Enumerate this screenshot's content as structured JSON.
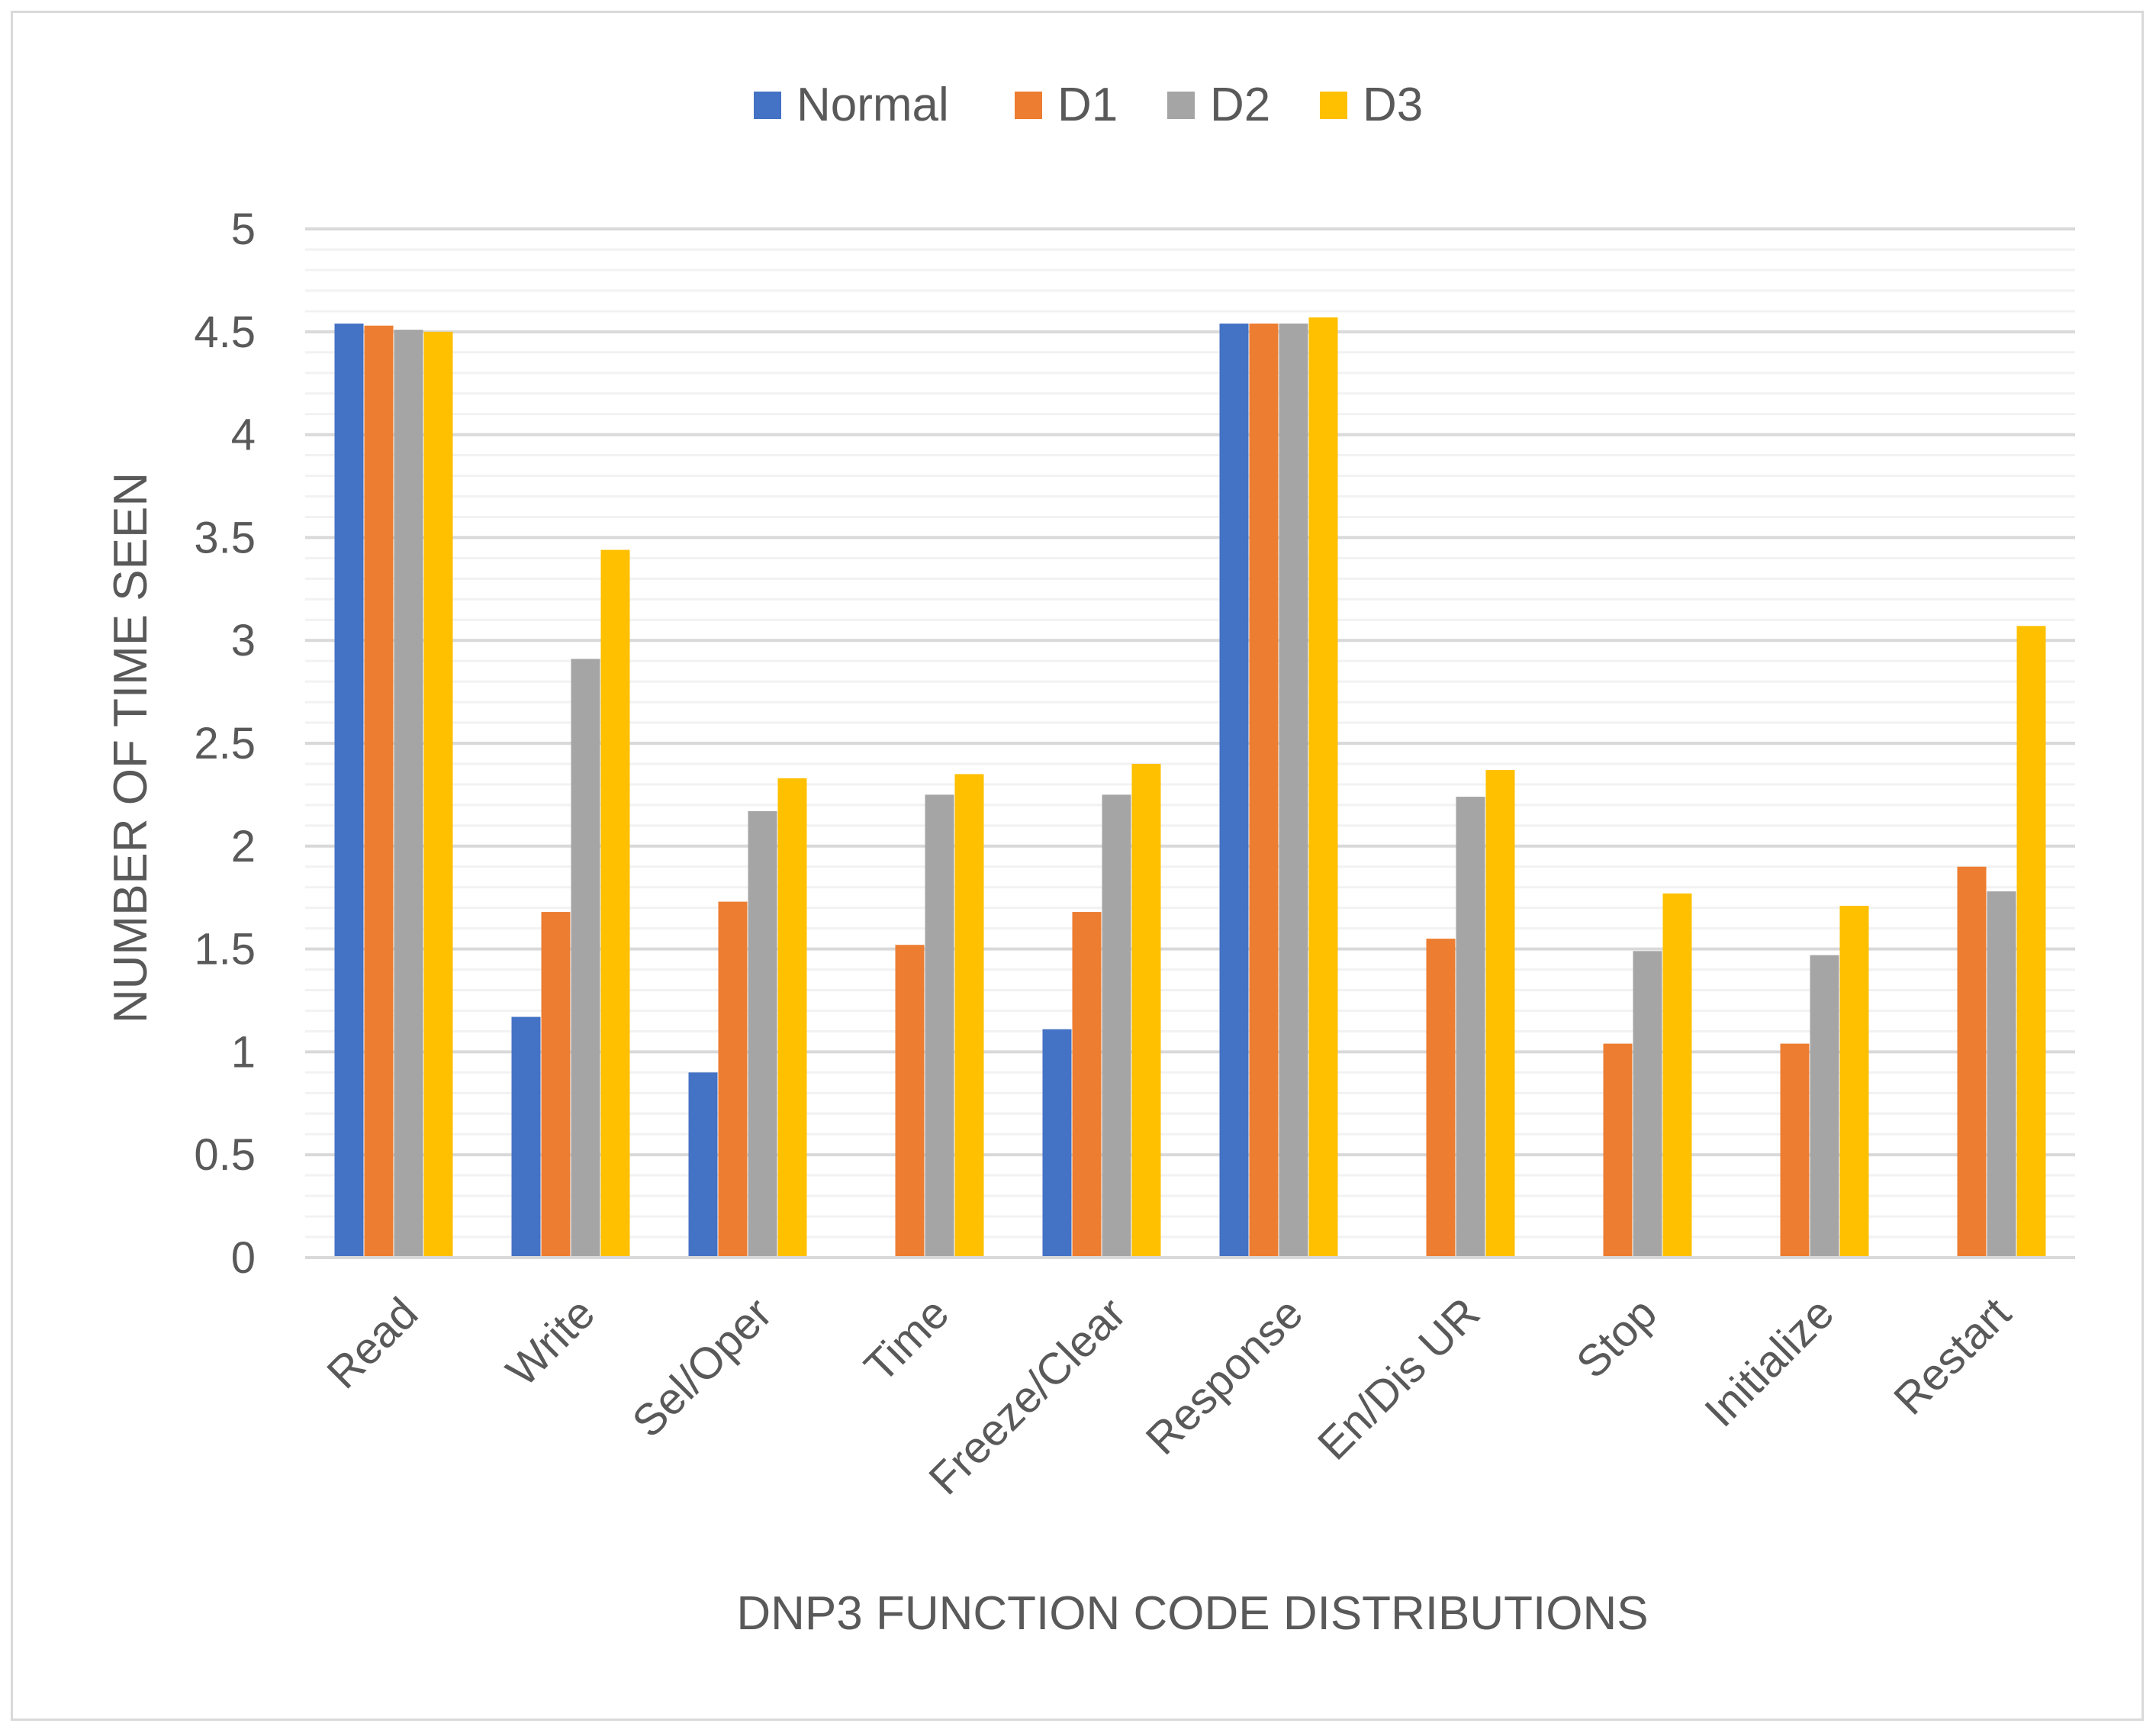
{
  "chart_data": {
    "type": "bar",
    "title": "",
    "xlabel": "DNP3 FUNCTION CODE DISTRIBUTIONS",
    "ylabel": "NUMBER OF TIME SEEN",
    "ylim": [
      0,
      5
    ],
    "yticks": [
      "0",
      "0.5",
      "1",
      "1.5",
      "2",
      "2.5",
      "3",
      "3.5",
      "4",
      "4.5",
      "5"
    ],
    "legend_position": "top",
    "grid": true,
    "categories": [
      "Read",
      "Write",
      "Sel/Oper",
      "Time",
      "Freeze/Clear",
      "Response",
      "En/Dis UR",
      "Stop",
      "Initialize",
      "Restart"
    ],
    "series": [
      {
        "name": "Normal",
        "color": "#4472c4",
        "values": [
          4.54,
          1.17,
          0.9,
          null,
          1.11,
          4.54,
          null,
          null,
          null,
          null
        ]
      },
      {
        "name": "D1",
        "color": "#ed7d31",
        "values": [
          4.53,
          1.68,
          1.73,
          1.52,
          1.68,
          4.54,
          1.55,
          1.04,
          1.04,
          1.9
        ]
      },
      {
        "name": "D2",
        "color": "#a5a5a5",
        "values": [
          4.51,
          2.91,
          2.17,
          2.25,
          2.25,
          4.54,
          2.24,
          1.49,
          1.47,
          1.78
        ]
      },
      {
        "name": "D3",
        "color": "#ffc000",
        "values": [
          4.5,
          3.44,
          2.33,
          2.35,
          2.4,
          4.57,
          2.37,
          1.77,
          1.71,
          3.07
        ]
      }
    ]
  }
}
